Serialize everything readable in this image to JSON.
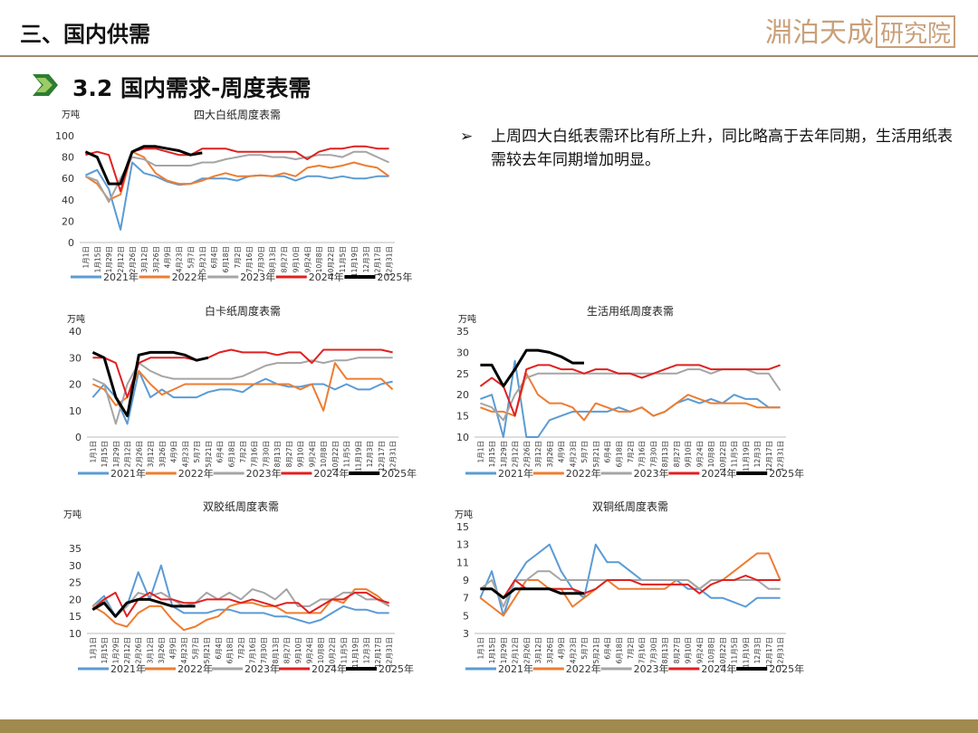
{
  "header": {
    "title": "三、国内供需",
    "logo": "淵泊天成",
    "logo_box": "研究院",
    "subtitle": "3.2 国内需求-周度表需"
  },
  "text": {
    "bullet": "上周四大白纸表需环比有所上升，同比略高于去年同期，生活用纸表需较去年同期增加明显。"
  },
  "chart_data": [
    {
      "type": "line",
      "title": "四大白纸周度表需",
      "y_label": "万吨",
      "categories": [
        "1月1日",
        "1月15日",
        "1月29日",
        "2月12日",
        "2月26日",
        "3月12日",
        "3月26日",
        "4月9日",
        "4月23日",
        "5月7日",
        "5月21日",
        "6月4日",
        "6月18日",
        "7月2日",
        "7月16日",
        "7月30日",
        "8月13日",
        "8月27日",
        "9月10日",
        "9月24日",
        "10月8日",
        "10月22日",
        "11月5日",
        "11月19日",
        "12月3日",
        "12月17日",
        "12月31日"
      ],
      "ylim": [
        0,
        100
      ],
      "yticks": [
        0,
        20,
        40,
        60,
        80,
        100
      ],
      "series": [
        {
          "name": "2021年",
          "color": "#5b9bd5",
          "values": [
            63,
            68,
            50,
            12,
            75,
            65,
            62,
            57,
            54,
            55,
            60,
            60,
            60,
            58,
            62,
            63,
            62,
            62,
            58,
            62,
            62,
            60,
            62,
            60,
            60,
            62,
            62
          ]
        },
        {
          "name": "2022年",
          "color": "#ed7d31",
          "values": [
            62,
            55,
            40,
            45,
            85,
            80,
            65,
            58,
            55,
            55,
            58,
            62,
            65,
            62,
            62,
            63,
            62,
            65,
            62,
            70,
            72,
            70,
            72,
            75,
            72,
            70,
            62
          ]
        },
        {
          "name": "2023年",
          "color": "#a5a5a5",
          "values": [
            62,
            58,
            38,
            60,
            80,
            78,
            72,
            72,
            72,
            72,
            75,
            75,
            78,
            80,
            82,
            82,
            80,
            80,
            78,
            80,
            82,
            82,
            80,
            85,
            85,
            80,
            75
          ]
        },
        {
          "name": "2024年",
          "color": "#e02020",
          "values": [
            82,
            85,
            82,
            48,
            85,
            88,
            88,
            85,
            82,
            82,
            88,
            88,
            88,
            85,
            85,
            85,
            85,
            85,
            85,
            78,
            85,
            88,
            88,
            90,
            90,
            88,
            88
          ]
        },
        {
          "name": "2025年",
          "color": "#000000",
          "values": [
            85,
            80,
            55,
            55,
            85,
            90,
            90,
            88,
            86,
            82,
            84,
            null,
            null,
            null,
            null,
            null,
            null,
            null,
            null,
            null,
            null,
            null,
            null,
            null,
            null,
            null,
            null
          ]
        }
      ]
    },
    {
      "type": "line",
      "title": "白卡纸周度表需",
      "y_label": "万吨",
      "categories": [
        "1月1日",
        "1月15日",
        "1月29日",
        "2月12日",
        "2月26日",
        "3月12日",
        "3月26日",
        "4月9日",
        "4月23日",
        "5月7日",
        "5月21日",
        "6月4日",
        "6月18日",
        "7月2日",
        "7月16日",
        "7月30日",
        "8月13日",
        "8月27日",
        "9月10日",
        "9月24日",
        "10月8日",
        "10月22日",
        "11月5日",
        "11月19日",
        "12月3日",
        "12月17日",
        "12月31日"
      ],
      "ylim": [
        0,
        40
      ],
      "yticks": [
        0,
        10,
        20,
        30,
        40
      ],
      "series": [
        {
          "name": "2021年",
          "color": "#5b9bd5",
          "values": [
            15,
            20,
            15,
            5,
            25,
            15,
            18,
            15,
            15,
            15,
            17,
            18,
            18,
            17,
            20,
            22,
            20,
            19,
            19,
            20,
            20,
            18,
            20,
            18,
            18,
            20,
            21
          ]
        },
        {
          "name": "2022年",
          "color": "#ed7d31",
          "values": [
            20,
            18,
            12,
            15,
            25,
            20,
            16,
            18,
            20,
            20,
            20,
            20,
            20,
            20,
            20,
            20,
            20,
            20,
            18,
            20,
            10,
            28,
            22,
            22,
            22,
            22,
            18
          ]
        },
        {
          "name": "2023年",
          "color": "#a5a5a5",
          "values": [
            22,
            20,
            5,
            20,
            28,
            25,
            23,
            22,
            22,
            22,
            22,
            22,
            22,
            23,
            25,
            27,
            28,
            28,
            28,
            29,
            28,
            29,
            29,
            30,
            30,
            30,
            30
          ]
        },
        {
          "name": "2024年",
          "color": "#e02020",
          "values": [
            30,
            30,
            28,
            15,
            28,
            30,
            30,
            30,
            30,
            29,
            30,
            32,
            33,
            32,
            32,
            32,
            31,
            32,
            32,
            28,
            33,
            33,
            33,
            33,
            33,
            33,
            32
          ]
        },
        {
          "name": "2025年",
          "color": "#000000",
          "values": [
            32,
            30,
            15,
            8,
            31,
            32,
            32,
            32,
            31,
            29,
            30,
            null,
            null,
            null,
            null,
            null,
            null,
            null,
            null,
            null,
            null,
            null,
            null,
            null,
            null,
            null,
            null
          ]
        }
      ]
    },
    {
      "type": "line",
      "title": "生活用纸周度表需",
      "y_label": "万吨",
      "categories": [
        "1月1日",
        "1月15日",
        "1月29日",
        "2月12日",
        "2月26日",
        "3月12日",
        "3月26日",
        "4月9日",
        "4月23日",
        "5月7日",
        "5月21日",
        "6月4日",
        "6月18日",
        "7月2日",
        "7月16日",
        "7月30日",
        "8月13日",
        "8月27日",
        "9月10日",
        "9月24日",
        "10月8日",
        "10月22日",
        "11月5日",
        "11月19日",
        "12月3日",
        "12月17日",
        "12月31日"
      ],
      "ylim": [
        10,
        35
      ],
      "yticks": [
        10,
        15,
        20,
        25,
        30,
        35
      ],
      "series": [
        {
          "name": "2021年",
          "color": "#5b9bd5",
          "values": [
            19,
            20,
            10,
            28,
            10,
            10,
            14,
            15,
            16,
            16,
            16,
            16,
            17,
            16,
            17,
            15,
            16,
            18,
            19,
            18,
            19,
            18,
            20,
            19,
            19,
            17,
            17
          ]
        },
        {
          "name": "2022年",
          "color": "#ed7d31",
          "values": [
            17,
            16,
            16,
            15,
            25,
            20,
            18,
            18,
            17,
            14,
            18,
            17,
            16,
            16,
            17,
            15,
            16,
            18,
            20,
            19,
            18,
            18,
            18,
            18,
            17,
            17,
            17
          ]
        },
        {
          "name": "2023年",
          "color": "#a5a5a5",
          "values": [
            18,
            17,
            14,
            20,
            24,
            25,
            25,
            25,
            25,
            25,
            25,
            25,
            25,
            25,
            25,
            25,
            25,
            25,
            26,
            26,
            25,
            26,
            26,
            26,
            25,
            25,
            21
          ]
        },
        {
          "name": "2024年",
          "color": "#e02020",
          "values": [
            22,
            24,
            22,
            15,
            26,
            27,
            27,
            26,
            26,
            25,
            26,
            26,
            25,
            25,
            24,
            25,
            26,
            27,
            27,
            27,
            26,
            26,
            26,
            26,
            26,
            26,
            27
          ]
        },
        {
          "name": "2025年",
          "color": "#000000",
          "values": [
            27,
            27,
            22,
            26,
            30.5,
            30.5,
            30,
            29,
            27.5,
            27.5,
            null,
            null,
            null,
            null,
            null,
            null,
            null,
            null,
            null,
            null,
            null,
            null,
            null,
            null,
            null,
            null,
            null
          ]
        }
      ]
    },
    {
      "type": "line",
      "title": "双胶纸周度表需",
      "y_label": "万吨",
      "categories": [
        "1月1日",
        "1月15日",
        "1月29日",
        "2月12日",
        "2月26日",
        "3月12日",
        "3月26日",
        "4月9日",
        "4月23日",
        "5月7日",
        "5月21日",
        "6月4日",
        "6月18日",
        "7月2日",
        "7月16日",
        "7月30日",
        "8月13日",
        "8月27日",
        "9月10日",
        "9月24日",
        "10月8日",
        "10月22日",
        "11月5日",
        "11月19日",
        "12月3日",
        "12月17日",
        "12月31日"
      ],
      "ylim": [
        10,
        35
      ],
      "yticks": [
        10,
        15,
        20,
        25,
        30,
        35
      ],
      "series": [
        {
          "name": "2021年",
          "color": "#5b9bd5",
          "values": [
            18,
            21,
            15,
            18,
            28,
            20,
            30,
            18,
            16,
            16,
            16,
            17,
            17,
            16,
            16,
            16,
            15,
            15,
            14,
            13,
            14,
            16,
            18,
            17,
            17,
            16,
            16
          ]
        },
        {
          "name": "2022年",
          "color": "#ed7d31",
          "values": [
            18,
            16,
            13,
            12,
            16,
            18,
            18,
            14,
            11,
            12,
            14,
            15,
            18,
            19,
            19,
            18,
            18,
            16,
            16,
            16,
            16,
            20,
            19,
            23,
            23,
            21,
            18
          ]
        },
        {
          "name": "2023年",
          "color": "#a5a5a5",
          "values": [
            18,
            20,
            15,
            18,
            22,
            21,
            22,
            20,
            18,
            19,
            22,
            20,
            22,
            20,
            23,
            22,
            20,
            23,
            18,
            18,
            20,
            20,
            22,
            22,
            20,
            20,
            18
          ]
        },
        {
          "name": "2024年",
          "color": "#e02020",
          "values": [
            17,
            20,
            22,
            15,
            20,
            22,
            20,
            20,
            19,
            19,
            20,
            20,
            20,
            19,
            20,
            19,
            18,
            19,
            19,
            16,
            18,
            20,
            20,
            22,
            22,
            20,
            19
          ]
        },
        {
          "name": "2025年",
          "color": "#000000",
          "values": [
            17,
            19,
            15,
            19,
            20,
            20,
            19,
            18,
            18,
            18,
            null,
            null,
            null,
            null,
            null,
            null,
            null,
            null,
            null,
            null,
            null,
            null,
            null,
            null,
            null,
            null,
            null
          ]
        }
      ]
    },
    {
      "type": "line",
      "title": "双铜纸周度表需",
      "y_label": "万吨",
      "categories": [
        "1月1日",
        "1月15日",
        "1月29日",
        "2月12日",
        "2月26日",
        "3月12日",
        "3月26日",
        "4月9日",
        "4月23日",
        "5月7日",
        "5月21日",
        "6月4日",
        "6月18日",
        "7月2日",
        "7月16日",
        "7月30日",
        "8月13日",
        "8月27日",
        "9月10日",
        "9月24日",
        "10月8日",
        "10月22日",
        "11月5日",
        "11月19日",
        "12月3日",
        "12月17日",
        "12月31日"
      ],
      "ylim": [
        3,
        15
      ],
      "yticks": [
        3,
        5,
        7,
        9,
        11,
        13,
        15
      ],
      "series": [
        {
          "name": "2021年",
          "color": "#5b9bd5",
          "values": [
            7,
            10,
            5,
            9,
            11,
            12,
            13,
            10,
            8,
            7,
            13,
            11,
            11,
            10,
            9,
            9,
            9,
            9,
            8,
            8,
            7,
            7,
            6.5,
            6,
            7,
            7,
            7
          ]
        },
        {
          "name": "2022年",
          "color": "#ed7d31",
          "values": [
            7,
            6,
            5,
            7,
            9,
            9,
            8,
            8,
            6,
            7,
            8,
            9,
            8,
            8,
            8,
            8,
            8,
            9,
            9,
            8,
            9,
            9,
            10,
            11,
            12,
            12,
            9
          ]
        },
        {
          "name": "2023年",
          "color": "#a5a5a5",
          "values": [
            8,
            9,
            6,
            9,
            9,
            10,
            10,
            9,
            9,
            9,
            9,
            9,
            9,
            9,
            9,
            9,
            9,
            9,
            9,
            8,
            9,
            9,
            9,
            9,
            9,
            8,
            8
          ]
        },
        {
          "name": "2024年",
          "color": "#e02020",
          "values": [
            8,
            8,
            7,
            9,
            8,
            8,
            8,
            8,
            8,
            7.5,
            8,
            9,
            9,
            9,
            8.5,
            8.5,
            8.5,
            8.5,
            8.5,
            7.5,
            8.5,
            9,
            9,
            9.5,
            9,
            9,
            9
          ]
        },
        {
          "name": "2025年",
          "color": "#000000",
          "values": [
            8,
            8,
            7,
            8,
            8,
            8,
            8,
            7.5,
            7.5,
            7.5,
            null,
            null,
            null,
            null,
            null,
            null,
            null,
            null,
            null,
            null,
            null,
            null,
            null,
            null,
            null,
            null,
            null
          ]
        }
      ]
    }
  ]
}
